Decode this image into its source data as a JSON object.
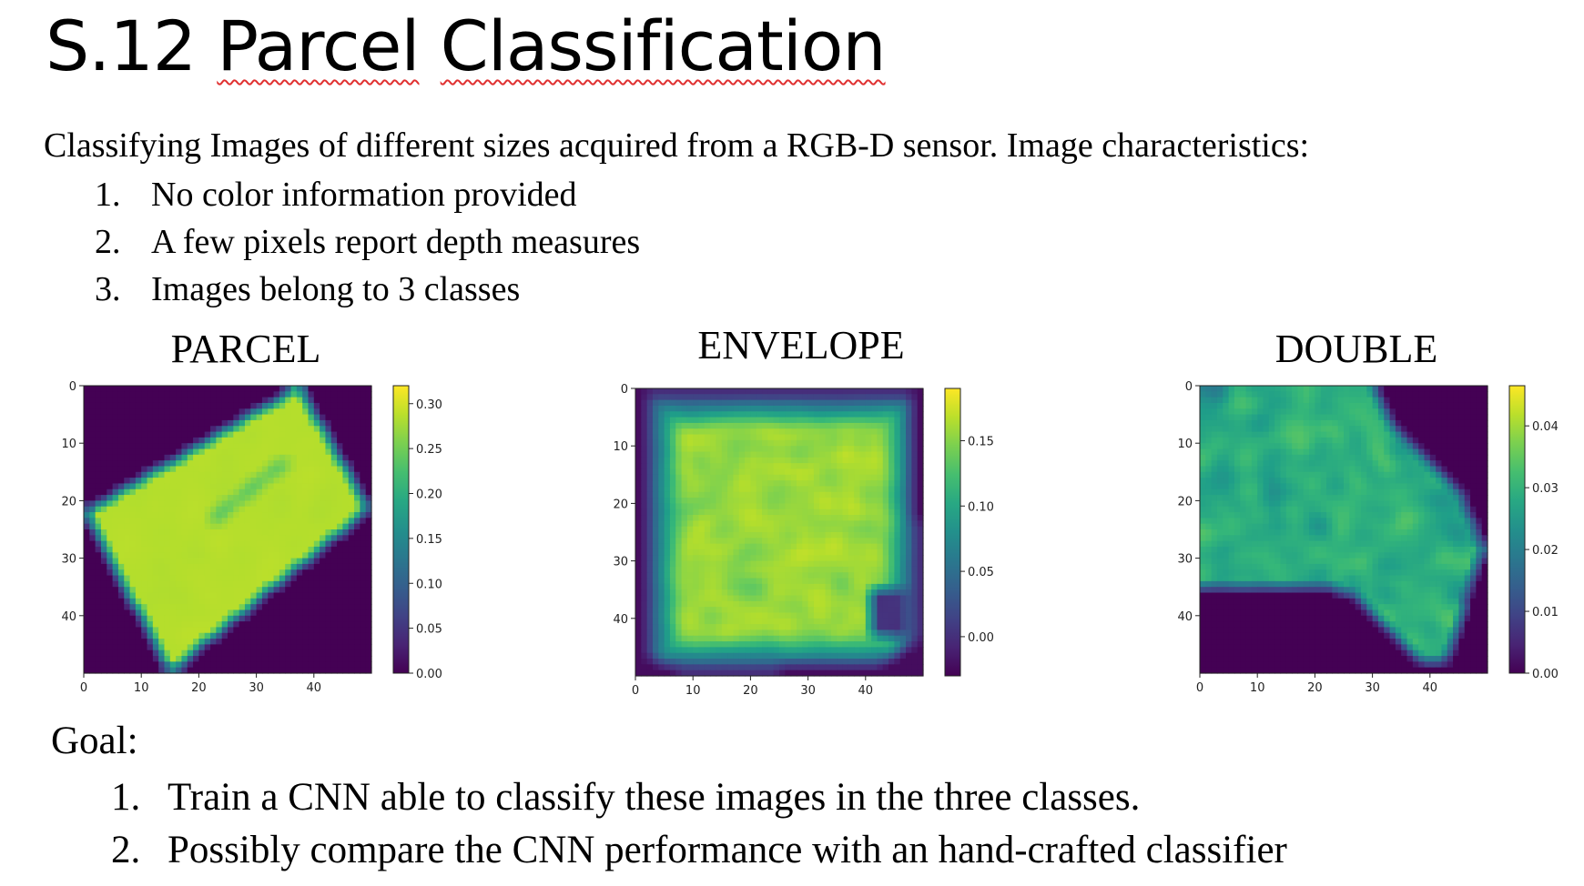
{
  "slide": {
    "title_prefix": "S.12 ",
    "title_w1": "Parcel",
    "title_w2": "Classification",
    "intro": "Classifying Images of different sizes acquired from a RGB-D sensor. Image characteristics:",
    "characteristics": [
      {
        "num": "1.",
        "text": "No color information provided"
      },
      {
        "num": "2.",
        "text": "A few pixels report depth measures"
      },
      {
        "num": "3.",
        "text": "Images belong to 3 classes"
      }
    ],
    "goal_label": "Goal:",
    "goals": [
      {
        "num": "1.",
        "text": "Train a CNN able to classify these images in the three classes."
      },
      {
        "num": "2.",
        "text": "Possibly compare the CNN performance with an hand-crafted classifier"
      }
    ]
  },
  "panels": [
    {
      "label": "PARCEL",
      "class": "parcel",
      "colorbar_ticks": [
        0.0,
        0.05,
        0.1,
        0.15,
        0.2,
        0.25,
        0.3
      ],
      "colorbar_range": [
        0.0,
        0.32
      ],
      "seed": 7
    },
    {
      "label": "ENVELOPE",
      "class": "envelope",
      "colorbar_ticks": [
        0.0,
        0.05,
        0.1,
        0.15
      ],
      "colorbar_range": [
        -0.03,
        0.19
      ],
      "seed": 21
    },
    {
      "label": "DOUBLE",
      "class": "double",
      "colorbar_ticks": [
        0.0,
        0.01,
        0.02,
        0.03,
        0.04
      ],
      "colorbar_range": [
        0.0,
        0.0465
      ],
      "seed": 43
    }
  ],
  "chart_data": [
    {
      "type": "heatmap",
      "title": "PARCEL",
      "x_ticks": [
        0,
        10,
        20,
        30,
        40
      ],
      "y_ticks": [
        0,
        10,
        20,
        30,
        40
      ],
      "xlim": [
        0,
        50
      ],
      "ylim": [
        0,
        50
      ],
      "colorbar_ticks": [
        0.0,
        0.05,
        0.1,
        0.15,
        0.2,
        0.25,
        0.3
      ],
      "colormap": "viridis"
    },
    {
      "type": "heatmap",
      "title": "ENVELOPE",
      "x_ticks": [
        0,
        10,
        20,
        30,
        40
      ],
      "y_ticks": [
        0,
        10,
        20,
        30,
        40
      ],
      "xlim": [
        0,
        50
      ],
      "ylim": [
        0,
        50
      ],
      "colorbar_ticks": [
        0.0,
        0.05,
        0.1,
        0.15
      ],
      "colormap": "viridis"
    },
    {
      "type": "heatmap",
      "title": "DOUBLE",
      "x_ticks": [
        0,
        10,
        20,
        30,
        40
      ],
      "y_ticks": [
        0,
        10,
        20,
        30,
        40
      ],
      "xlim": [
        0,
        50
      ],
      "ylim": [
        0,
        50
      ],
      "colorbar_ticks": [
        0.0,
        0.01,
        0.02,
        0.03,
        0.04
      ],
      "colormap": "viridis"
    }
  ],
  "colors": {
    "title_underline": "#e03030",
    "text": "#000000"
  }
}
